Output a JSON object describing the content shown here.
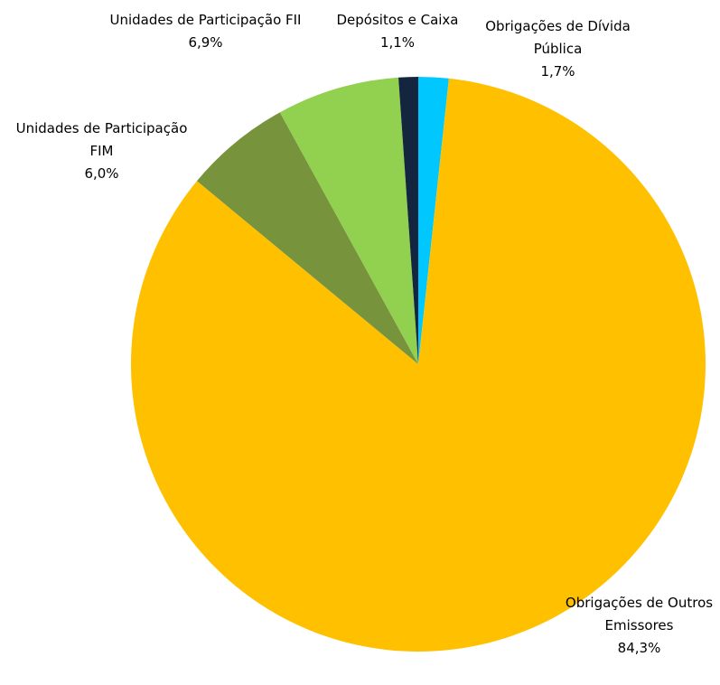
{
  "chart_data": {
    "type": "pie",
    "categories": [
      "Obrigações de Dívida Pública",
      "Obrigações de Outros Emissores",
      "Unidades de Participação FIM",
      "Unidades de Participação FII",
      "Depósitos e Caixa"
    ],
    "values": [
      1.7,
      84.3,
      6.0,
      6.9,
      1.1
    ],
    "value_labels": [
      "1,7%",
      "84,3%",
      "6,0%",
      "6,9%",
      "1,1%"
    ],
    "colors": [
      "#00c8ff",
      "#ffc000",
      "#77933c",
      "#92d050",
      "#14263f"
    ]
  }
}
